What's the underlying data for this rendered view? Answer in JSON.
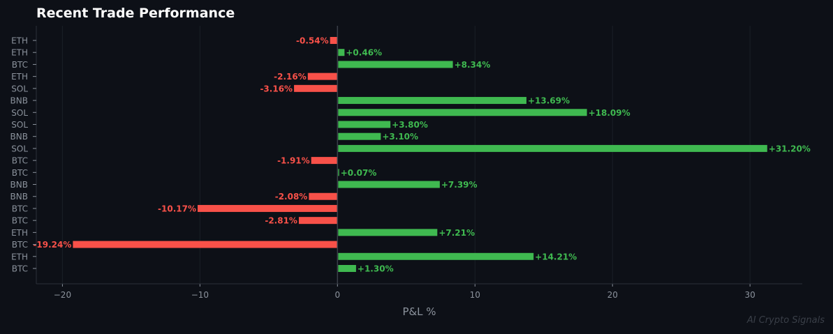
{
  "chart_data": {
    "type": "bar",
    "orientation": "horizontal",
    "title": "Recent Trade Performance",
    "xlabel": "P&L %",
    "ylabel": "",
    "xlim": [
      -21.9,
      33.8
    ],
    "xticks": [
      -20,
      -10,
      0,
      10,
      20,
      30
    ],
    "xtick_labels": [
      "−20",
      "−10",
      "0",
      "10",
      "20",
      "30"
    ],
    "grid": "vertical, faint",
    "categories": [
      "ETH",
      "ETH",
      "BTC",
      "ETH",
      "SOL",
      "BNB",
      "SOL",
      "SOL",
      "BNB",
      "SOL",
      "BTC",
      "BTC",
      "BNB",
      "BNB",
      "BTC",
      "BTC",
      "ETH",
      "BTC",
      "ETH",
      "BTC"
    ],
    "values": [
      -0.54,
      0.46,
      8.34,
      -2.16,
      -3.16,
      13.69,
      18.09,
      3.8,
      3.1,
      31.2,
      -1.91,
      0.07,
      7.39,
      -2.08,
      -10.17,
      -2.81,
      7.21,
      -19.24,
      14.21,
      1.3
    ],
    "data_labels": [
      "-0.54%",
      "+0.46%",
      "+8.34%",
      "-2.16%",
      "-3.16%",
      "+13.69%",
      "+18.09%",
      "+3.80%",
      "+3.10%",
      "+31.20%",
      "-1.91%",
      "+0.07%",
      "+7.39%",
      "-2.08%",
      "-10.17%",
      "-2.81%",
      "+7.21%",
      "-19.24%",
      "+14.21%",
      "+1.30%"
    ],
    "colors": {
      "positive": "#3fb950",
      "negative": "#f85149",
      "background": "#0d1017",
      "text": "#8b929c"
    }
  },
  "watermark": "AI Crypto Signals"
}
